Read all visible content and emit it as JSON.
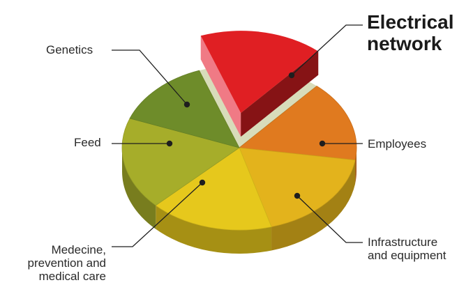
{
  "chart_data": {
    "type": "pie",
    "style": "3d-exploded",
    "title": "",
    "slices": [
      {
        "label": "Electrical network",
        "value": 15,
        "color": "#e01f23",
        "exploded": true,
        "emphasis": true
      },
      {
        "label": "Employees",
        "value": 14,
        "color": "#e07a1f"
      },
      {
        "label": "Infrastructure and equipment",
        "value": 16,
        "color": "#e3b31c"
      },
      {
        "label": "Medecine, prevention and medical care",
        "value": 15,
        "color": "#e6c81c"
      },
      {
        "label": "Feed",
        "value": 16,
        "color": "#a6ad2a"
      },
      {
        "label": "Genetics",
        "value": 12,
        "color": "#6e8c2a"
      }
    ],
    "legend": "none",
    "labels": "callout-lines"
  },
  "labels": {
    "electrical": {
      "line1": "Electrical",
      "line2": "network"
    },
    "genetics": "Genetics",
    "feed": "Feed",
    "employees": "Employees",
    "medicine": {
      "line1": "Medecine,",
      "line2": "prevention and",
      "line3": "medical care"
    },
    "infrastructure": {
      "line1": "Infrastructure",
      "line2": "and equipment"
    }
  }
}
